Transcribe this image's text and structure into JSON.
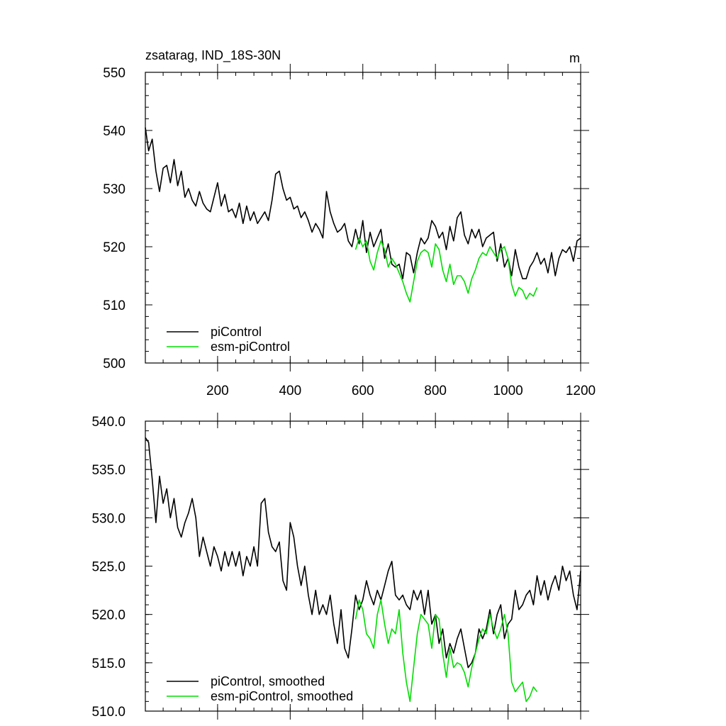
{
  "chart_data": [
    {
      "type": "line",
      "title": "zsatarag, IND_18S-30N",
      "units": "m",
      "xlim": [
        1,
        1200
      ],
      "ylim": [
        500,
        550
      ],
      "x_ticks": [
        200,
        400,
        600,
        800,
        1000,
        1200
      ],
      "y_ticks": [
        500,
        510,
        520,
        530,
        540,
        550
      ],
      "y_tick_labels": [
        "500",
        "510",
        "520",
        "530",
        "540",
        "550"
      ],
      "legend_position": "bottom-left",
      "series": [
        {
          "name": "piControl",
          "color": "#000000",
          "x": [
            1,
            10,
            20,
            30,
            40,
            50,
            60,
            70,
            80,
            90,
            100,
            110,
            120,
            130,
            140,
            150,
            160,
            170,
            180,
            190,
            200,
            210,
            220,
            230,
            240,
            250,
            260,
            270,
            280,
            290,
            300,
            310,
            320,
            330,
            340,
            350,
            360,
            370,
            380,
            390,
            400,
            410,
            420,
            430,
            440,
            450,
            460,
            470,
            480,
            490,
            500,
            510,
            520,
            530,
            540,
            550,
            560,
            570,
            580,
            590,
            600,
            610,
            620,
            630,
            640,
            650,
            660,
            670,
            680,
            690,
            700,
            710,
            720,
            730,
            740,
            750,
            760,
            770,
            780,
            790,
            800,
            810,
            820,
            830,
            840,
            850,
            860,
            870,
            880,
            890,
            900,
            910,
            920,
            930,
            940,
            950,
            960,
            970,
            980,
            990,
            1000,
            1010,
            1020,
            1030,
            1040,
            1050,
            1060,
            1070,
            1080,
            1090,
            1100,
            1110,
            1120,
            1130,
            1140,
            1150,
            1160,
            1170,
            1180,
            1190,
            1200
          ],
          "values": [
            540.5,
            536.5,
            538.5,
            533.0,
            529.5,
            533.5,
            534.0,
            531.0,
            535.0,
            530.5,
            533.0,
            528.5,
            530.0,
            528.0,
            527.0,
            529.5,
            527.5,
            526.5,
            526.0,
            528.5,
            531.0,
            527.0,
            529.0,
            526.0,
            526.5,
            525.0,
            527.5,
            524.0,
            527.0,
            524.5,
            526.0,
            524.0,
            525.0,
            526.0,
            524.5,
            528.0,
            532.5,
            533.0,
            530.0,
            528.0,
            528.5,
            526.5,
            527.0,
            525.0,
            526.0,
            524.5,
            522.5,
            524.0,
            523.0,
            521.5,
            529.5,
            526.0,
            524.0,
            522.5,
            523.0,
            524.0,
            521.0,
            520.0,
            523.0,
            520.5,
            524.5,
            519.0,
            522.5,
            520.0,
            521.5,
            523.0,
            518.0,
            520.5,
            517.0,
            516.5,
            517.0,
            514.5,
            519.0,
            518.5,
            515.5,
            519.0,
            521.5,
            520.5,
            521.5,
            524.5,
            523.5,
            521.5,
            522.5,
            519.5,
            523.5,
            521.0,
            525.0,
            526.0,
            522.0,
            520.5,
            523.0,
            521.5,
            523.0,
            520.0,
            521.5,
            522.0,
            522.5,
            517.5,
            520.5,
            516.5,
            518.0,
            515.0,
            519.5,
            516.5,
            514.5,
            514.5,
            516.5,
            517.5,
            519.0,
            517.0,
            518.0,
            515.5,
            519.0,
            515.0,
            518.0,
            519.5,
            519.0,
            520.0,
            517.5,
            521.0,
            521.5
          ],
          "values_note": ""
        },
        {
          "name": "esm-piControl",
          "color": "#00dd00",
          "x": [
            580,
            590,
            600,
            610,
            620,
            630,
            640,
            650,
            660,
            670,
            680,
            690,
            700,
            710,
            720,
            730,
            740,
            750,
            760,
            770,
            780,
            790,
            800,
            810,
            820,
            830,
            840,
            850,
            860,
            870,
            880,
            890,
            900,
            910,
            920,
            930,
            940,
            950,
            960,
            970,
            980,
            990,
            1000,
            1010,
            1020,
            1030,
            1040,
            1050,
            1060,
            1070,
            1080
          ],
          "values": [
            519.5,
            521.5,
            520.0,
            521.0,
            517.5,
            516.0,
            519.0,
            521.0,
            519.5,
            516.5,
            518.0,
            517.0,
            515.5,
            514.0,
            512.0,
            510.5,
            514.0,
            517.5,
            519.0,
            519.5,
            519.0,
            516.5,
            520.5,
            519.5,
            516.0,
            514.0,
            517.0,
            513.5,
            515.0,
            515.0,
            514.0,
            512.0,
            514.5,
            516.0,
            518.0,
            519.0,
            518.5,
            520.0,
            519.0,
            518.0,
            519.5,
            520.0,
            518.0,
            513.5,
            511.5,
            513.0,
            512.5,
            511.0,
            512.0,
            511.5,
            513.0
          ]
        }
      ]
    },
    {
      "type": "line",
      "title": "",
      "xlim": [
        1,
        1200
      ],
      "ylim": [
        510,
        540
      ],
      "x_ticks": [
        200,
        400,
        600,
        800,
        1000,
        1200
      ],
      "y_ticks": [
        510,
        515,
        520,
        525,
        530,
        535,
        540
      ],
      "y_tick_labels": [
        "510.0",
        "515.0",
        "520.0",
        "525.0",
        "530.0",
        "535.0",
        "540.0"
      ],
      "legend_position": "bottom-left",
      "series": [
        {
          "name": "piControl, smoothed",
          "color": "#000000",
          "x": [
            1,
            10,
            20,
            30,
            40,
            50,
            60,
            70,
            80,
            90,
            100,
            110,
            120,
            130,
            140,
            150,
            160,
            170,
            180,
            190,
            200,
            210,
            220,
            230,
            240,
            250,
            260,
            270,
            280,
            290,
            300,
            310,
            320,
            330,
            340,
            350,
            360,
            370,
            380,
            390,
            400,
            410,
            420,
            430,
            440,
            450,
            460,
            470,
            480,
            490,
            500,
            510,
            520,
            530,
            540,
            550,
            560,
            570,
            580,
            590,
            600,
            610,
            620,
            630,
            640,
            650,
            660,
            670,
            680,
            690,
            700,
            710,
            720,
            730,
            740,
            750,
            760,
            770,
            780,
            790,
            800,
            810,
            820,
            830,
            840,
            850,
            860,
            870,
            880,
            890,
            900,
            910,
            920,
            930,
            940,
            950,
            960,
            970,
            980,
            990,
            1000,
            1010,
            1020,
            1030,
            1040,
            1050,
            1060,
            1070,
            1080,
            1090,
            1100,
            1110,
            1120,
            1130,
            1140,
            1150,
            1160,
            1170,
            1180,
            1190,
            1200
          ],
          "values": [
            538.3,
            537.8,
            534.0,
            529.5,
            534.3,
            531.5,
            533.0,
            530.0,
            532.0,
            529.0,
            528.0,
            529.5,
            530.5,
            532.0,
            530.0,
            526.0,
            528.0,
            526.5,
            525.0,
            527.0,
            526.0,
            524.5,
            526.5,
            525.0,
            526.5,
            525.0,
            526.5,
            524.0,
            526.0,
            525.0,
            527.0,
            525.0,
            531.5,
            532.0,
            528.5,
            527.0,
            526.5,
            527.5,
            523.5,
            522.5,
            529.5,
            528.0,
            525.0,
            523.0,
            525.0,
            522.0,
            520.0,
            522.5,
            520.0,
            521.0,
            520.0,
            522.0,
            519.0,
            517.0,
            520.5,
            516.5,
            515.5,
            518.5,
            522.0,
            520.5,
            521.5,
            523.5,
            522.0,
            521.0,
            522.5,
            521.5,
            523.0,
            524.5,
            525.5,
            522.0,
            521.5,
            522.0,
            521.0,
            520.5,
            522.5,
            521.5,
            522.5,
            520.0,
            522.5,
            519.0,
            520.0,
            517.0,
            518.5,
            515.5,
            517.0,
            516.0,
            517.5,
            518.5,
            516.5,
            514.5,
            515.0,
            516.0,
            518.5,
            517.5,
            518.5,
            520.5,
            518.0,
            520.0,
            521.0,
            517.5,
            519.0,
            519.5,
            522.5,
            520.5,
            521.0,
            522.0,
            522.5,
            521.0,
            524.0,
            522.0,
            523.5,
            521.5,
            523.0,
            524.0,
            522.5,
            525.0,
            523.5,
            524.5,
            522.0,
            520.5,
            524.5
          ],
          "values_note": ""
        },
        {
          "name": "esm-piControl, smoothed",
          "color": "#00dd00",
          "x": [
            580,
            590,
            600,
            610,
            620,
            630,
            640,
            650,
            660,
            670,
            680,
            690,
            700,
            710,
            720,
            730,
            740,
            750,
            760,
            770,
            780,
            790,
            800,
            810,
            820,
            830,
            840,
            850,
            860,
            870,
            880,
            890,
            900,
            910,
            920,
            930,
            940,
            950,
            960,
            970,
            980,
            990,
            1000,
            1010,
            1020,
            1030,
            1040,
            1050,
            1060,
            1070,
            1080
          ],
          "values": [
            519.5,
            521.5,
            520.5,
            518.0,
            517.5,
            516.5,
            520.0,
            521.5,
            519.0,
            517.0,
            518.5,
            518.0,
            520.5,
            516.0,
            513.0,
            511.0,
            514.5,
            518.0,
            520.0,
            519.5,
            519.0,
            516.5,
            520.0,
            519.5,
            516.0,
            513.5,
            516.5,
            514.5,
            515.0,
            514.8,
            514.0,
            512.5,
            514.5,
            516.0,
            517.5,
            518.5,
            518.0,
            520.0,
            518.5,
            517.5,
            518.5,
            520.0,
            518.0,
            513.0,
            512.0,
            512.5,
            513.0,
            511.0,
            511.5,
            512.5,
            512.0
          ]
        }
      ]
    }
  ]
}
